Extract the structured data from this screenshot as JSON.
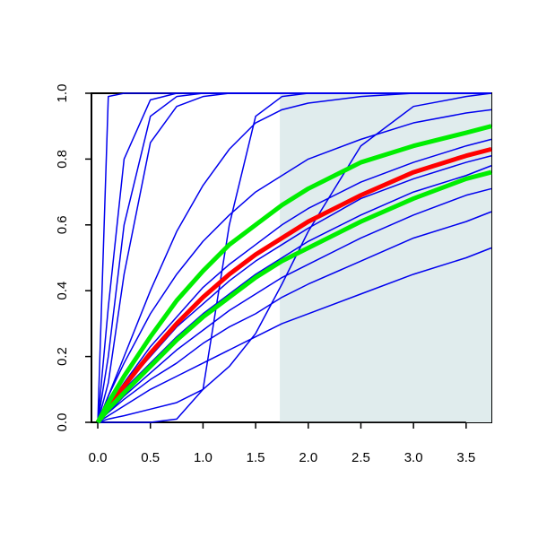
{
  "chart_data": {
    "type": "line",
    "x": [
      0,
      0.1,
      0.25,
      0.5,
      0.75,
      1,
      1.25,
      1.5,
      1.75,
      2,
      2.5,
      3,
      3.5,
      3.74
    ],
    "series": [
      {
        "color": "#0000ee",
        "values": [
          0,
          0.02,
          0.05,
          0.1,
          0.14,
          0.18,
          0.22,
          0.26,
          0.3,
          0.33,
          0.39,
          0.45,
          0.5,
          0.53
        ]
      },
      {
        "color": "#0000ee",
        "values": [
          0,
          0.03,
          0.07,
          0.13,
          0.18,
          0.24,
          0.29,
          0.33,
          0.38,
          0.42,
          0.49,
          0.56,
          0.61,
          0.64
        ]
      },
      {
        "color": "#0000ee",
        "values": [
          0,
          0.03,
          0.08,
          0.15,
          0.22,
          0.28,
          0.34,
          0.39,
          0.44,
          0.48,
          0.56,
          0.63,
          0.69,
          0.71
        ]
      },
      {
        "color": "#0000ee",
        "values": [
          0,
          0.04,
          0.1,
          0.18,
          0.26,
          0.33,
          0.39,
          0.45,
          0.5,
          0.55,
          0.63,
          0.7,
          0.75,
          0.78
        ]
      },
      {
        "color": "#0000ee",
        "values": [
          0,
          0.04,
          0.11,
          0.2,
          0.29,
          0.36,
          0.43,
          0.49,
          0.54,
          0.59,
          0.68,
          0.74,
          0.79,
          0.81
        ]
      },
      {
        "color": "#0000ee",
        "values": [
          0,
          0.05,
          0.12,
          0.23,
          0.32,
          0.41,
          0.48,
          0.54,
          0.6,
          0.65,
          0.73,
          0.79,
          0.84,
          0.86
        ]
      },
      {
        "color": "#0000ee",
        "values": [
          0,
          0.99,
          1,
          1,
          1,
          1,
          1,
          1,
          1,
          1,
          1,
          1,
          1,
          1
        ]
      },
      {
        "color": "#0000ee",
        "values": [
          0,
          0.35,
          0.8,
          0.98,
          1,
          1,
          1,
          1,
          1,
          1,
          1,
          1,
          1,
          1
        ]
      },
      {
        "color": "#0000ee",
        "values": [
          0,
          0.2,
          0.6,
          0.93,
          0.99,
          1,
          1,
          1,
          1,
          1,
          1,
          1,
          1,
          1
        ]
      },
      {
        "color": "#0000ee",
        "values": [
          0,
          0.12,
          0.45,
          0.85,
          0.96,
          0.99,
          1,
          1,
          1,
          1,
          1,
          1,
          1,
          1
        ]
      },
      {
        "color": "#0000ee",
        "values": [
          0,
          0.08,
          0.2,
          0.4,
          0.58,
          0.72,
          0.83,
          0.91,
          0.95,
          0.97,
          0.99,
          1,
          1,
          1
        ]
      },
      {
        "color": "#0000ee",
        "values": [
          0,
          0.08,
          0.18,
          0.33,
          0.45,
          0.55,
          0.63,
          0.7,
          0.75,
          0.8,
          0.86,
          0.91,
          0.94,
          0.95
        ]
      },
      {
        "color": "#0000ee",
        "values": [
          0,
          0,
          0,
          0,
          0.01,
          0.1,
          0.6,
          0.93,
          0.99,
          1,
          1,
          1,
          1,
          1
        ]
      },
      {
        "color": "#0000ee",
        "values": [
          0,
          0.01,
          0.02,
          0.04,
          0.06,
          0.1,
          0.17,
          0.27,
          0.42,
          0.58,
          0.84,
          0.96,
          0.99,
          1
        ]
      },
      {
        "color": "#ff0000",
        "width": 5,
        "values": [
          0,
          0.05,
          0.11,
          0.21,
          0.3,
          0.38,
          0.45,
          0.51,
          0.56,
          0.61,
          0.69,
          0.76,
          0.81,
          0.83
        ]
      },
      {
        "color": "#00ee00",
        "width": 5,
        "values": [
          0,
          0.06,
          0.14,
          0.26,
          0.37,
          0.46,
          0.54,
          0.6,
          0.66,
          0.71,
          0.79,
          0.84,
          0.88,
          0.9
        ]
      },
      {
        "color": "#00ee00",
        "width": 5,
        "values": [
          0,
          0.04,
          0.09,
          0.17,
          0.25,
          0.32,
          0.38,
          0.44,
          0.49,
          0.53,
          0.61,
          0.68,
          0.74,
          0.76
        ]
      }
    ],
    "shade": {
      "xlim": [
        1.73,
        3.74
      ],
      "color": "#e0eced"
    },
    "xlim": [
      -0.06,
      3.74
    ],
    "ylim": [
      0,
      1
    ],
    "xticks": [
      {
        "value": 0,
        "label": "0.0"
      },
      0.5,
      {
        "value": 1,
        "label": "1.0"
      },
      1.5,
      {
        "value": 2,
        "label": "2.0"
      },
      2.5,
      {
        "value": 3,
        "label": "3.0"
      },
      3.5
    ],
    "yticks": [
      {
        "value": 0,
        "label": "0.0"
      },
      0.2,
      0.4,
      0.6,
      0.8,
      {
        "value": 1,
        "label": "1.0"
      }
    ]
  }
}
